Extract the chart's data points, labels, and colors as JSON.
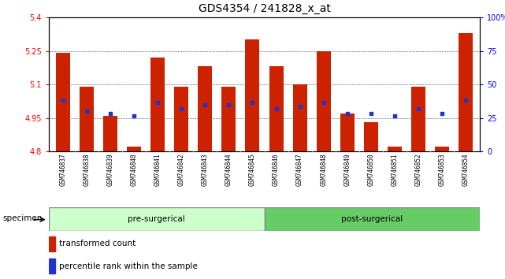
{
  "title": "GDS4354 / 241828_x_at",
  "samples": [
    "GSM746837",
    "GSM746838",
    "GSM746839",
    "GSM746840",
    "GSM746841",
    "GSM746842",
    "GSM746843",
    "GSM746844",
    "GSM746845",
    "GSM746846",
    "GSM746847",
    "GSM746848",
    "GSM746849",
    "GSM746850",
    "GSM746851",
    "GSM746852",
    "GSM746853",
    "GSM746854"
  ],
  "bar_values": [
    5.24,
    5.09,
    4.96,
    4.82,
    5.22,
    5.09,
    5.18,
    5.09,
    5.3,
    5.18,
    5.1,
    5.25,
    4.97,
    4.93,
    4.82,
    5.09,
    4.82,
    5.33
  ],
  "dot_values": [
    5.03,
    4.98,
    4.97,
    4.96,
    5.02,
    4.99,
    5.01,
    5.01,
    5.02,
    4.99,
    5.0,
    5.02,
    4.97,
    4.97,
    4.96,
    4.99,
    4.97,
    5.03
  ],
  "bar_color": "#cc2200",
  "dot_color": "#2233cc",
  "ymin": 4.8,
  "ymax": 5.4,
  "yticks": [
    4.8,
    4.95,
    5.1,
    5.25,
    5.4
  ],
  "ytick_labels": [
    "4.8",
    "4.95",
    "5.1",
    "5.25",
    "5.4"
  ],
  "y2ticks": [
    0,
    25,
    50,
    75,
    100
  ],
  "y2tick_labels": [
    "0",
    "25",
    "50",
    "75",
    "100%"
  ],
  "grid_lines": [
    4.95,
    5.1,
    5.25
  ],
  "pre_surgical_count": 9,
  "post_surgical_count": 9,
  "pre_color": "#ccffcc",
  "post_color": "#66cc66",
  "legend_bar_label": "transformed count",
  "legend_dot_label": "percentile rank within the sample",
  "specimen_label": "specimen",
  "pre_label": "pre-surgerical",
  "post_label": "post-surgerical",
  "sample_bg_color": "#d0d0d0",
  "bg_color": "#ffffff"
}
